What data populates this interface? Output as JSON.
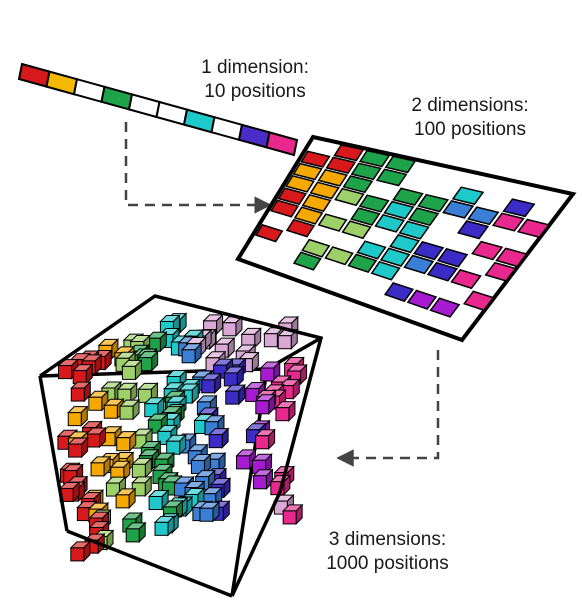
{
  "labels": {
    "one_d": {
      "line1": "1 dimension:",
      "line2": "10 positions"
    },
    "two_d": {
      "line1": "2 dimensions:",
      "line2": "100 positions"
    },
    "three_d": {
      "line1": "3 dimensions:",
      "line2": "1000 positions"
    }
  },
  "palette": [
    "#d7191c",
    "#f5a800",
    "#9ed06a",
    "#1fa34a",
    "#20c9c9",
    "#3a7fd5",
    "#3b2cc7",
    "#a61ad0",
    "#e8288c",
    "#d9a8d4"
  ],
  "strip_colors": [
    "#d7191c",
    "#f5b800",
    "#ffffff",
    "#1fa34a",
    "#ffffff",
    "#ffffff",
    "#20c9c9",
    "#ffffff",
    "#4a2cc7",
    "#e8288c"
  ]
}
